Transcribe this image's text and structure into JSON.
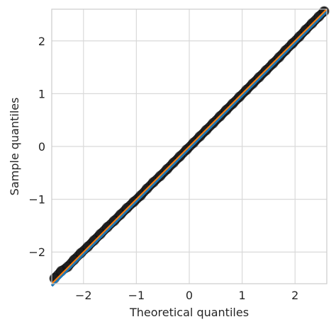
{
  "chart_data": {
    "type": "scatter",
    "title": "",
    "xlabel": "Theoretical quantiles",
    "ylabel": "Sample quantiles",
    "xlim": [
      -2.6,
      2.6
    ],
    "ylim": [
      -2.6,
      2.6
    ],
    "x_ticks": [
      -2,
      -1,
      0,
      1,
      2
    ],
    "y_ticks": [
      -2,
      -1,
      0,
      1,
      2
    ],
    "x_tick_labels": [
      "−2",
      "−1",
      "0",
      "1",
      "2"
    ],
    "y_tick_labels": [
      "−2",
      "−1",
      "0",
      "1",
      "2"
    ],
    "grid": true,
    "series": [
      {
        "kind": "points",
        "color": "#000000",
        "x": [
          -2.55,
          -2.42,
          -2.3,
          -2.18,
          -2.05,
          -1.92,
          -1.8,
          -1.68,
          -1.55,
          -1.42,
          -1.3,
          -1.18,
          -1.05,
          -0.92,
          -0.8,
          -0.68,
          -0.55,
          -0.42,
          -0.3,
          -0.18,
          -0.05,
          0.08,
          0.2,
          0.32,
          0.45,
          0.58,
          0.7,
          0.82,
          0.95,
          1.08,
          1.2,
          1.32,
          1.45,
          1.58,
          1.7,
          1.82,
          1.95,
          2.08,
          2.2,
          2.32,
          2.45,
          2.55
        ],
        "y": [
          -2.5,
          -2.36,
          -2.28,
          -2.15,
          -2.02,
          -1.9,
          -1.78,
          -1.66,
          -1.53,
          -1.41,
          -1.29,
          -1.17,
          -1.05,
          -0.93,
          -0.8,
          -0.68,
          -0.56,
          -0.43,
          -0.31,
          -0.19,
          -0.06,
          0.07,
          0.19,
          0.31,
          0.44,
          0.57,
          0.69,
          0.81,
          0.94,
          1.07,
          1.19,
          1.31,
          1.44,
          1.57,
          1.69,
          1.82,
          1.95,
          2.08,
          2.21,
          2.33,
          2.46,
          2.56
        ]
      },
      {
        "kind": "line",
        "color": "#1f77b4",
        "x": [
          -2.6,
          2.6
        ],
        "y": [
          -2.6,
          2.6
        ]
      },
      {
        "kind": "line",
        "color": "#ff7f0e",
        "x": [
          -2.6,
          2.6
        ],
        "y": [
          -2.6,
          2.6
        ]
      }
    ]
  }
}
